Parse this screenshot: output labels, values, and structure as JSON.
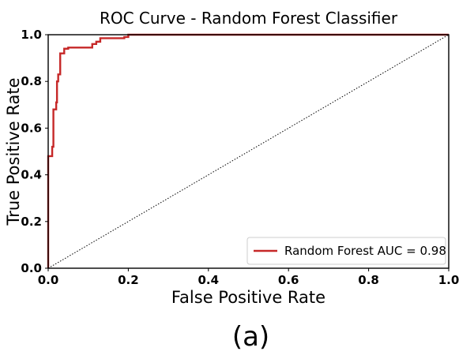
{
  "chart_data": {
    "type": "line",
    "title": "ROC Curve - Random Forest Classifier",
    "xlabel": "False Positive Rate",
    "ylabel": "True Positive Rate",
    "xlim": [
      0.0,
      1.0
    ],
    "ylim": [
      0.0,
      1.0
    ],
    "xticks": [
      "0.0",
      "0.2",
      "0.4",
      "0.6",
      "0.8",
      "1.0"
    ],
    "yticks": [
      "0.0",
      "0.2",
      "0.4",
      "0.6",
      "0.8",
      "1.0"
    ],
    "grid": false,
    "legend_position": "lower-right",
    "series": [
      {
        "name": "Random Forest AUC = 0.98",
        "color": "#c62828",
        "style": "solid",
        "points": [
          [
            0.0,
            0.0
          ],
          [
            0.0,
            0.48
          ],
          [
            0.01,
            0.48
          ],
          [
            0.01,
            0.52
          ],
          [
            0.013,
            0.52
          ],
          [
            0.013,
            0.68
          ],
          [
            0.02,
            0.68
          ],
          [
            0.02,
            0.71
          ],
          [
            0.022,
            0.71
          ],
          [
            0.022,
            0.8
          ],
          [
            0.025,
            0.8
          ],
          [
            0.025,
            0.83
          ],
          [
            0.03,
            0.83
          ],
          [
            0.03,
            0.92
          ],
          [
            0.04,
            0.92
          ],
          [
            0.04,
            0.94
          ],
          [
            0.05,
            0.94
          ],
          [
            0.05,
            0.945
          ],
          [
            0.11,
            0.945
          ],
          [
            0.11,
            0.96
          ],
          [
            0.12,
            0.96
          ],
          [
            0.12,
            0.97
          ],
          [
            0.13,
            0.97
          ],
          [
            0.13,
            0.985
          ],
          [
            0.19,
            0.985
          ],
          [
            0.19,
            0.99
          ],
          [
            0.2,
            0.99
          ],
          [
            0.2,
            1.0
          ],
          [
            1.0,
            1.0
          ]
        ]
      },
      {
        "name": "chance",
        "color": "#000000",
        "style": "dotted",
        "points": [
          [
            0.0,
            0.0
          ],
          [
            1.0,
            1.0
          ]
        ]
      }
    ]
  },
  "caption": "(a)"
}
